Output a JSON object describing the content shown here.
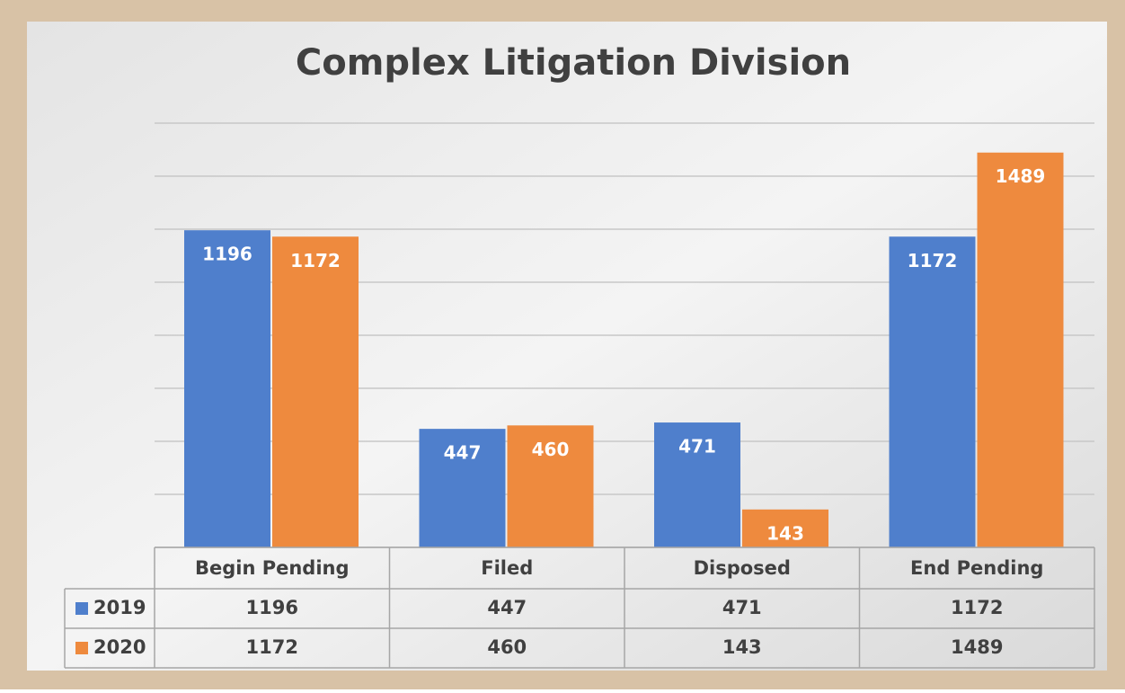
{
  "chart_data": {
    "type": "bar",
    "title": "Complex Litigation Division",
    "categories": [
      "Begin Pending",
      "Filed",
      "Disposed",
      "End Pending"
    ],
    "series": [
      {
        "name": "2019",
        "color": "#4f7fcc",
        "values": [
          1196,
          447,
          471,
          1172
        ]
      },
      {
        "name": "2020",
        "color": "#ee8a3e",
        "values": [
          1172,
          460,
          143,
          1489
        ]
      }
    ],
    "ylim": [
      0,
      1600
    ],
    "yticks": [
      0,
      200,
      400,
      600,
      800,
      1000,
      1200,
      1400,
      1600
    ],
    "grid": true
  }
}
